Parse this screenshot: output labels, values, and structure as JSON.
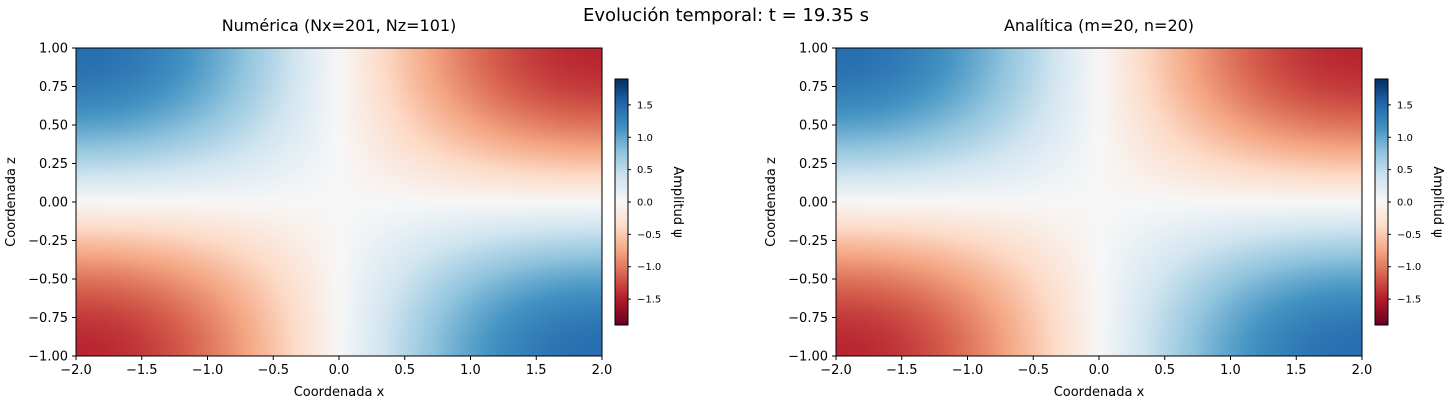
{
  "figure": {
    "suptitle": "Evolución temporal: t = 19.35 s"
  },
  "chart_data": [
    {
      "type": "heatmap",
      "title": "Numérica (Nx=201, Nz=101)",
      "xlabel": "Coordenada x",
      "ylabel": "Coordenada z",
      "xlim": [
        -2.0,
        2.0
      ],
      "ylim": [
        -1.0,
        1.0
      ],
      "xticks": [
        "−2.0",
        "−1.5",
        "−1.0",
        "−0.5",
        "0.0",
        "0.5",
        "1.0",
        "1.5",
        "2.0"
      ],
      "xtick_values": [
        -2.0,
        -1.5,
        -1.0,
        -0.5,
        0.0,
        0.5,
        1.0,
        1.5,
        2.0
      ],
      "yticks": [
        "−1.00",
        "−0.75",
        "−0.50",
        "−0.25",
        "0.00",
        "0.25",
        "0.50",
        "0.75",
        "1.00"
      ],
      "ytick_values": [
        -1.0,
        -0.75,
        -0.5,
        -0.25,
        0.0,
        0.25,
        0.5,
        0.75,
        1.0
      ],
      "colormap": "RdBu",
      "field_amplitude": 1.45,
      "colorbar": {
        "label": "Amplitud ψ",
        "range": [
          -1.9,
          1.9
        ],
        "ticks": [
          "−1.5",
          "−1.0",
          "−0.5",
          "0.0",
          "0.5",
          "1.0",
          "1.5"
        ],
        "tick_values": [
          -1.5,
          -1.0,
          -0.5,
          0.0,
          0.5,
          1.0,
          1.5
        ]
      }
    },
    {
      "type": "heatmap",
      "title": "Analítica (m=20, n=20)",
      "xlabel": "Coordenada x",
      "ylabel": "Coordenada z",
      "xlim": [
        -2.0,
        2.0
      ],
      "ylim": [
        -1.0,
        1.0
      ],
      "xticks": [
        "−2.0",
        "−1.5",
        "−1.0",
        "−0.5",
        "0.0",
        "0.5",
        "1.0",
        "1.5",
        "2.0"
      ],
      "xtick_values": [
        -2.0,
        -1.5,
        -1.0,
        -0.5,
        0.0,
        0.5,
        1.0,
        1.5,
        2.0
      ],
      "yticks": [
        "−1.00",
        "−0.75",
        "−0.50",
        "−0.25",
        "0.00",
        "0.25",
        "0.50",
        "0.75",
        "1.00"
      ],
      "ytick_values": [
        -1.0,
        -0.75,
        -0.5,
        -0.25,
        0.0,
        0.25,
        0.5,
        0.75,
        1.0
      ],
      "colormap": "RdBu",
      "field_amplitude": 1.45,
      "colorbar": {
        "label": "Amplitud ψ",
        "range": [
          -1.9,
          1.9
        ],
        "ticks": [
          "−1.5",
          "−1.0",
          "−0.5",
          "0.0",
          "0.5",
          "1.0",
          "1.5"
        ],
        "tick_values": [
          -1.5,
          -1.0,
          -0.5,
          0.0,
          0.5,
          1.0,
          1.5
        ]
      }
    }
  ]
}
